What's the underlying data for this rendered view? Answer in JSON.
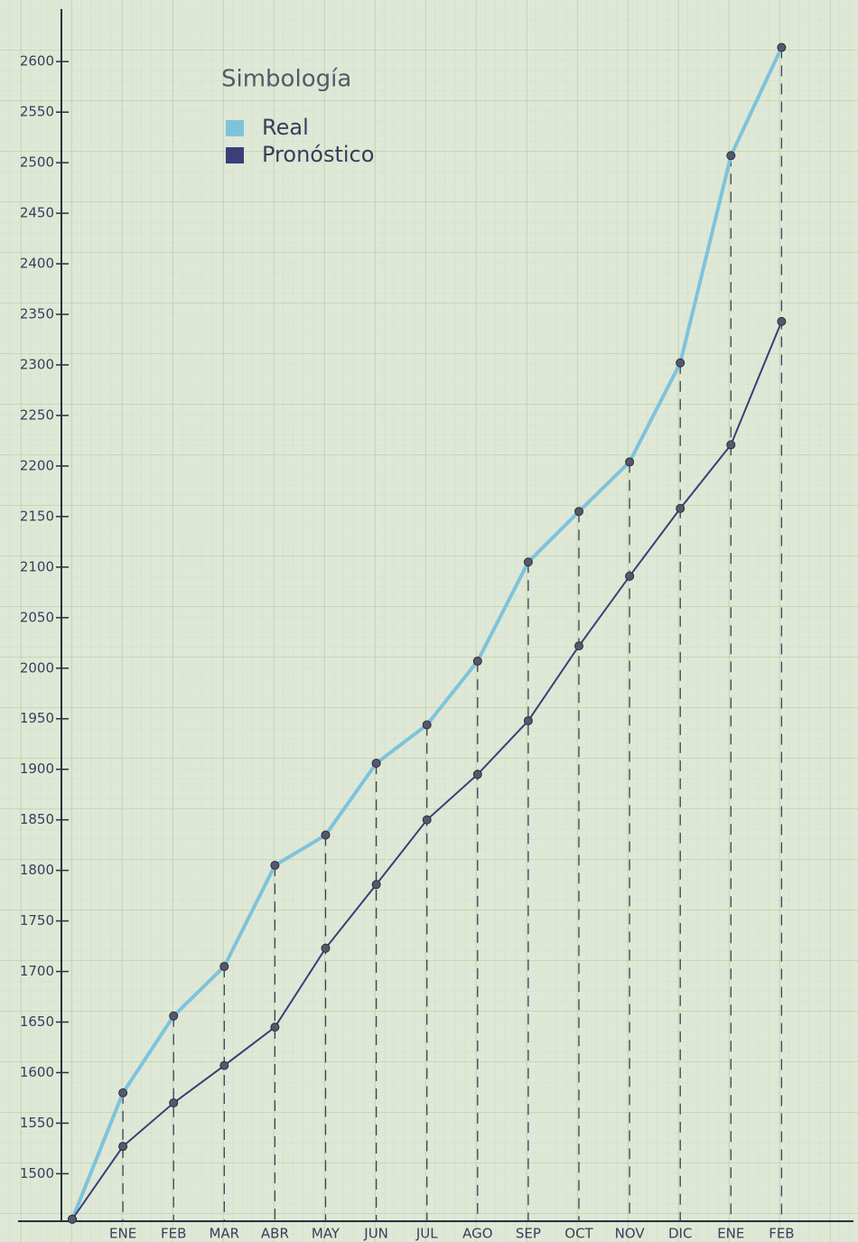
{
  "chart_data": {
    "type": "line",
    "legend_title": "Simbología",
    "categories": [
      null,
      "ENE",
      "FEB",
      "MAR",
      "ABR",
      "MAY",
      "JUN",
      "JUL",
      "AGO",
      "SEP",
      "OCT",
      "NOV",
      "DIC",
      "ENE",
      "FEB"
    ],
    "series": [
      {
        "name": "Real",
        "color": "#7ec3dc",
        "values": [
          1455,
          1580,
          1656,
          1705,
          1805,
          1835,
          1906,
          1944,
          2007,
          2105,
          2155,
          2204,
          2302,
          2507,
          2614
        ]
      },
      {
        "name": "Pronóstico",
        "color": "#3a3f78",
        "values": [
          1455,
          1527,
          1570,
          1607,
          1645,
          1723,
          1786,
          1850,
          1895,
          1948,
          2022,
          2091,
          2158,
          2221,
          2343
        ]
      }
    ],
    "ylim": [
      1453,
      2652
    ],
    "yticks": [
      1500,
      1550,
      1600,
      1650,
      1700,
      1750,
      1800,
      1850,
      1900,
      1950,
      2000,
      2050,
      2100,
      2150,
      2200,
      2250,
      2300,
      2350,
      2400,
      2450,
      2500,
      2550,
      2600
    ],
    "grid": true
  }
}
